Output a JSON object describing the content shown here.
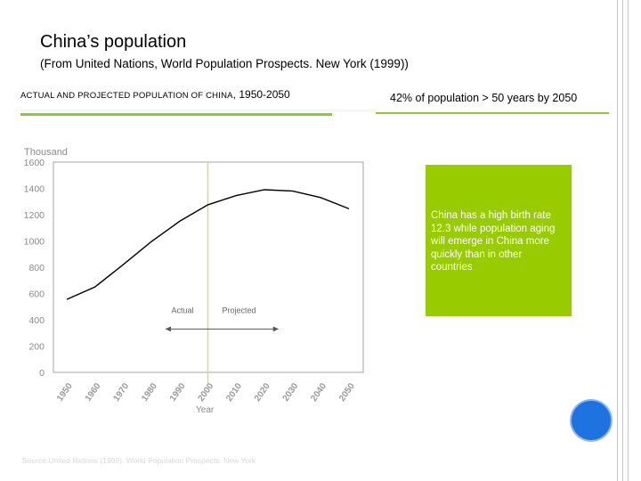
{
  "slide": {
    "title": "China’s population",
    "subtitle": "(From United Nations, World Population Prospects. New York (1999))",
    "chart_heading_sc": "Actual and projected population of China",
    "chart_heading_years": ", 1950-2050",
    "right_heading": "42% of population > 50 years by 2050",
    "callout_text": "China has a high birth rate 12.3 while population aging will emerge in China more quickly than in other countries",
    "accent_color": "#8dc63f",
    "callout_color": "#99cc00",
    "button_color": "#1e73e0"
  },
  "chart_data": {
    "type": "line",
    "title": "",
    "xlabel": "Year",
    "ylabel": "Thousand",
    "x": [
      1950,
      1960,
      1970,
      1980,
      1990,
      2000,
      2010,
      2020,
      2030,
      2040,
      2050
    ],
    "series": [
      {
        "values": [
          555,
          650,
          820,
          995,
          1150,
          1275,
          1345,
          1390,
          1380,
          1330,
          1245
        ]
      }
    ],
    "y_ticks": [
      "0",
      "200",
      "400",
      "600",
      "800",
      "1000",
      "1200",
      "1400",
      "1600"
    ],
    "x_ticks": [
      "1950",
      "1960",
      "1970",
      "1980",
      "1990",
      "2000",
      "2010",
      "2020",
      "2030",
      "2040",
      "2050"
    ],
    "ylim": [
      0,
      1600
    ],
    "xlim": [
      1950,
      2050
    ],
    "divider_year": 2000,
    "annotation_actual": "Actual",
    "annotation_projected": "Projected",
    "source": "Source:United Nations (1999). World Population Prospects. New York",
    "grid": false,
    "line_color": "#000000",
    "divider_color": "#c8e08c"
  }
}
